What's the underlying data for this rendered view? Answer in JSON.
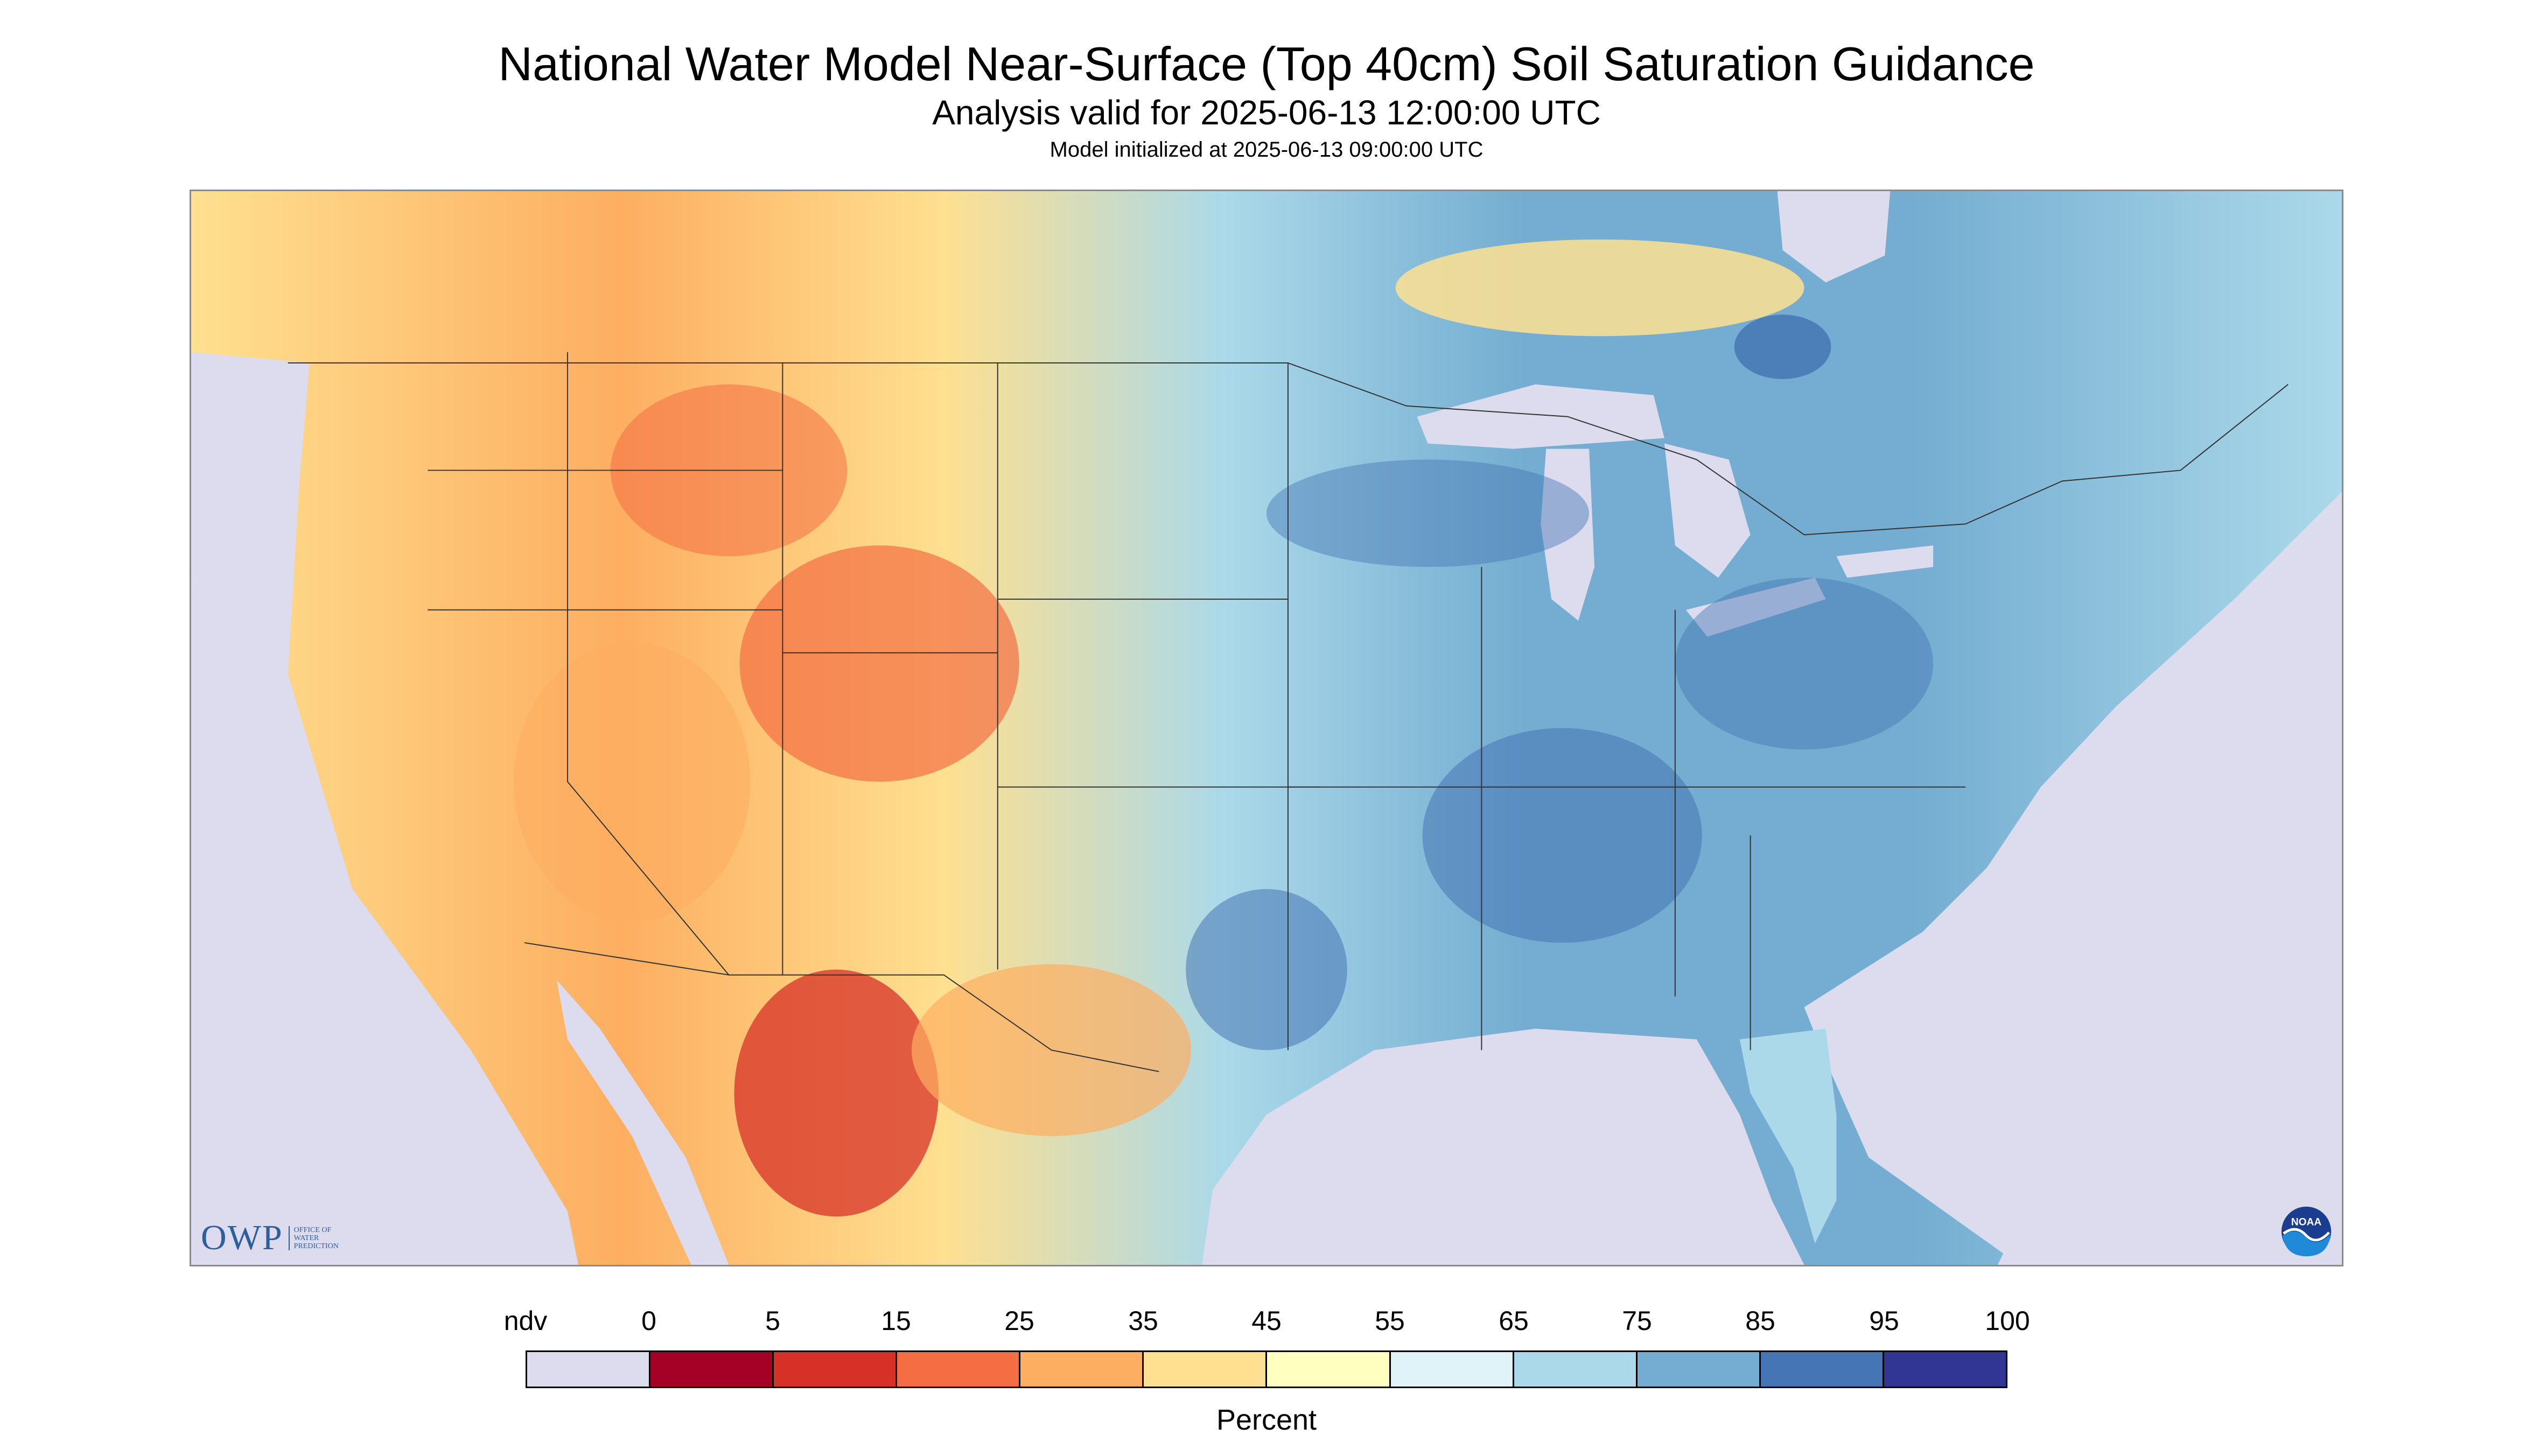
{
  "title": "National Water Model Near-Surface (Top 40cm) Soil Saturation Guidance",
  "subtitle": "Analysis valid for 2025-06-13 12:00:00 UTC",
  "init_text": "Model initialized at 2025-06-13 09:00:00 UTC",
  "logos": {
    "owp_text": "OWP",
    "owp_sub_1": "OFFICE OF",
    "owp_sub_2": "WATER",
    "owp_sub_3": "PREDICTION",
    "noaa_text": "NOAA"
  },
  "legend": {
    "title": "Percent",
    "labels": [
      "ndv",
      "0",
      "5",
      "15",
      "25",
      "35",
      "45",
      "55",
      "65",
      "75",
      "85",
      "95",
      "100"
    ],
    "colors": [
      "#dcdcee",
      "#a50026",
      "#d73027",
      "#f46d43",
      "#fdae61",
      "#fee090",
      "#ffffbf",
      "#e0f3f8",
      "#abd9e9",
      "#74add1",
      "#4575b4",
      "#313695"
    ]
  },
  "colors": {
    "ndv": "#dcdcee",
    "water": "#dcdcee",
    "boundary": "#333333"
  }
}
